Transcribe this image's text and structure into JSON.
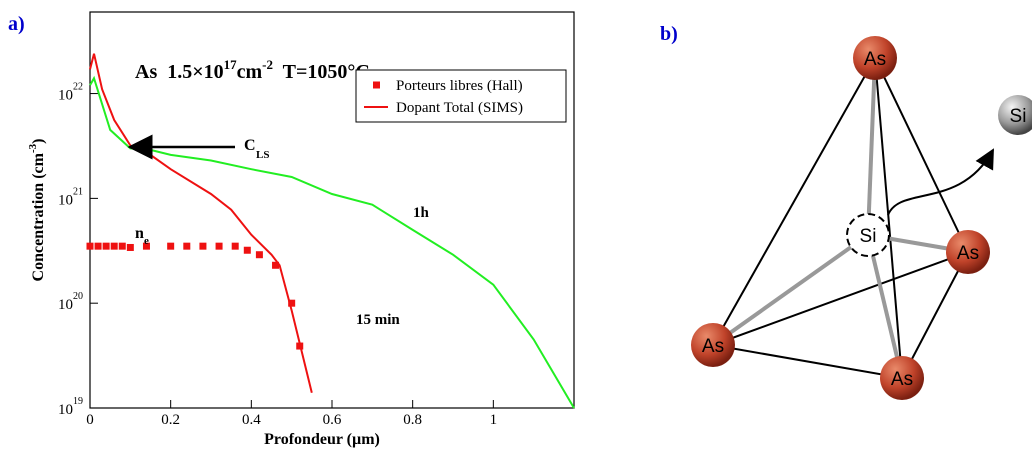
{
  "panel_labels": [
    "a)",
    "b)"
  ],
  "chart_data": {
    "type": "line",
    "log_y": true,
    "title": [
      "As  1.5×10",
      "17",
      "cm",
      "-2",
      "  T=1050°C"
    ],
    "x_label": "Profondeur (µm)",
    "y_label": [
      "Concentration (cm",
      "-3",
      ")"
    ],
    "xlim": [
      0,
      1.2
    ],
    "ylim": [
      1e+19,
      6e+22
    ],
    "xticks": [
      0,
      0.2,
      0.4,
      0.6,
      0.8,
      1
    ],
    "yticks": [
      {
        "value": 1e+19,
        "label": "10",
        "sup": "19"
      },
      {
        "value": 1e+20,
        "label": "10",
        "sup": "20"
      },
      {
        "value": 1e+21,
        "label": "10",
        "sup": "21"
      },
      {
        "value": 1e+22,
        "label": "10",
        "sup": "22"
      }
    ],
    "legend": "upper right",
    "series": [
      {
        "name": "Porteurs libres (Hall)",
        "marker": "square",
        "color": "#ee1111",
        "x": [
          0,
          0.02,
          0.04,
          0.06,
          0.08,
          0.1,
          0.14,
          0.2,
          0.24,
          0.28,
          0.32,
          0.36,
          0.39,
          0.42,
          0.46,
          0.5,
          0.52
        ],
        "values": [
          3.5e+20,
          3.5e+20,
          3.5e+20,
          3.5e+20,
          3.5e+20,
          3.4e+20,
          3.5e+20,
          3.5e+20,
          3.5e+20,
          3.5e+20,
          3.5e+20,
          3.5e+20,
          3.2e+20,
          2.9e+20,
          2.3e+20,
          1e+20,
          3.9e+19
        ]
      },
      {
        "name": "Dopant Total (SIMS)",
        "label": "15 min",
        "color": "#ee1111",
        "x": [
          0,
          0.01,
          0.03,
          0.06,
          0.1,
          0.15,
          0.2,
          0.3,
          0.35,
          0.4,
          0.45,
          0.47,
          0.5,
          0.55
        ],
        "values": [
          1.7e+22,
          2.4e+22,
          1.1e+22,
          5.6e+21,
          3.2e+21,
          2.6e+21,
          1.9e+21,
          1.1e+21,
          7.8e+20,
          4.5e+20,
          2.9e+20,
          2.3e+20,
          8.5e+19,
          1.4e+19
        ]
      },
      {
        "label": "1h",
        "color": "#22ee22",
        "x": [
          0,
          0.01,
          0.05,
          0.1,
          0.15,
          0.2,
          0.3,
          0.4,
          0.5,
          0.6,
          0.7,
          0.8,
          0.9,
          1.0,
          1.1,
          1.2
        ],
        "values": [
          1.2e+22,
          1.4e+22,
          4.5e+21,
          3e+21,
          2.9e+21,
          2.6e+21,
          2.3e+21,
          1.9e+21,
          1.6e+21,
          1.1e+21,
          8.7e+20,
          5e+20,
          2.9e+20,
          1.5e+20,
          4.5e+19,
          1e+19
        ]
      }
    ],
    "annotations": {
      "cls": [
        "C",
        "LS"
      ],
      "ne": [
        "n",
        "e"
      ]
    }
  },
  "diagram": {
    "atoms": [
      "As",
      "Si",
      "As",
      "Si",
      "As",
      "As"
    ]
  }
}
